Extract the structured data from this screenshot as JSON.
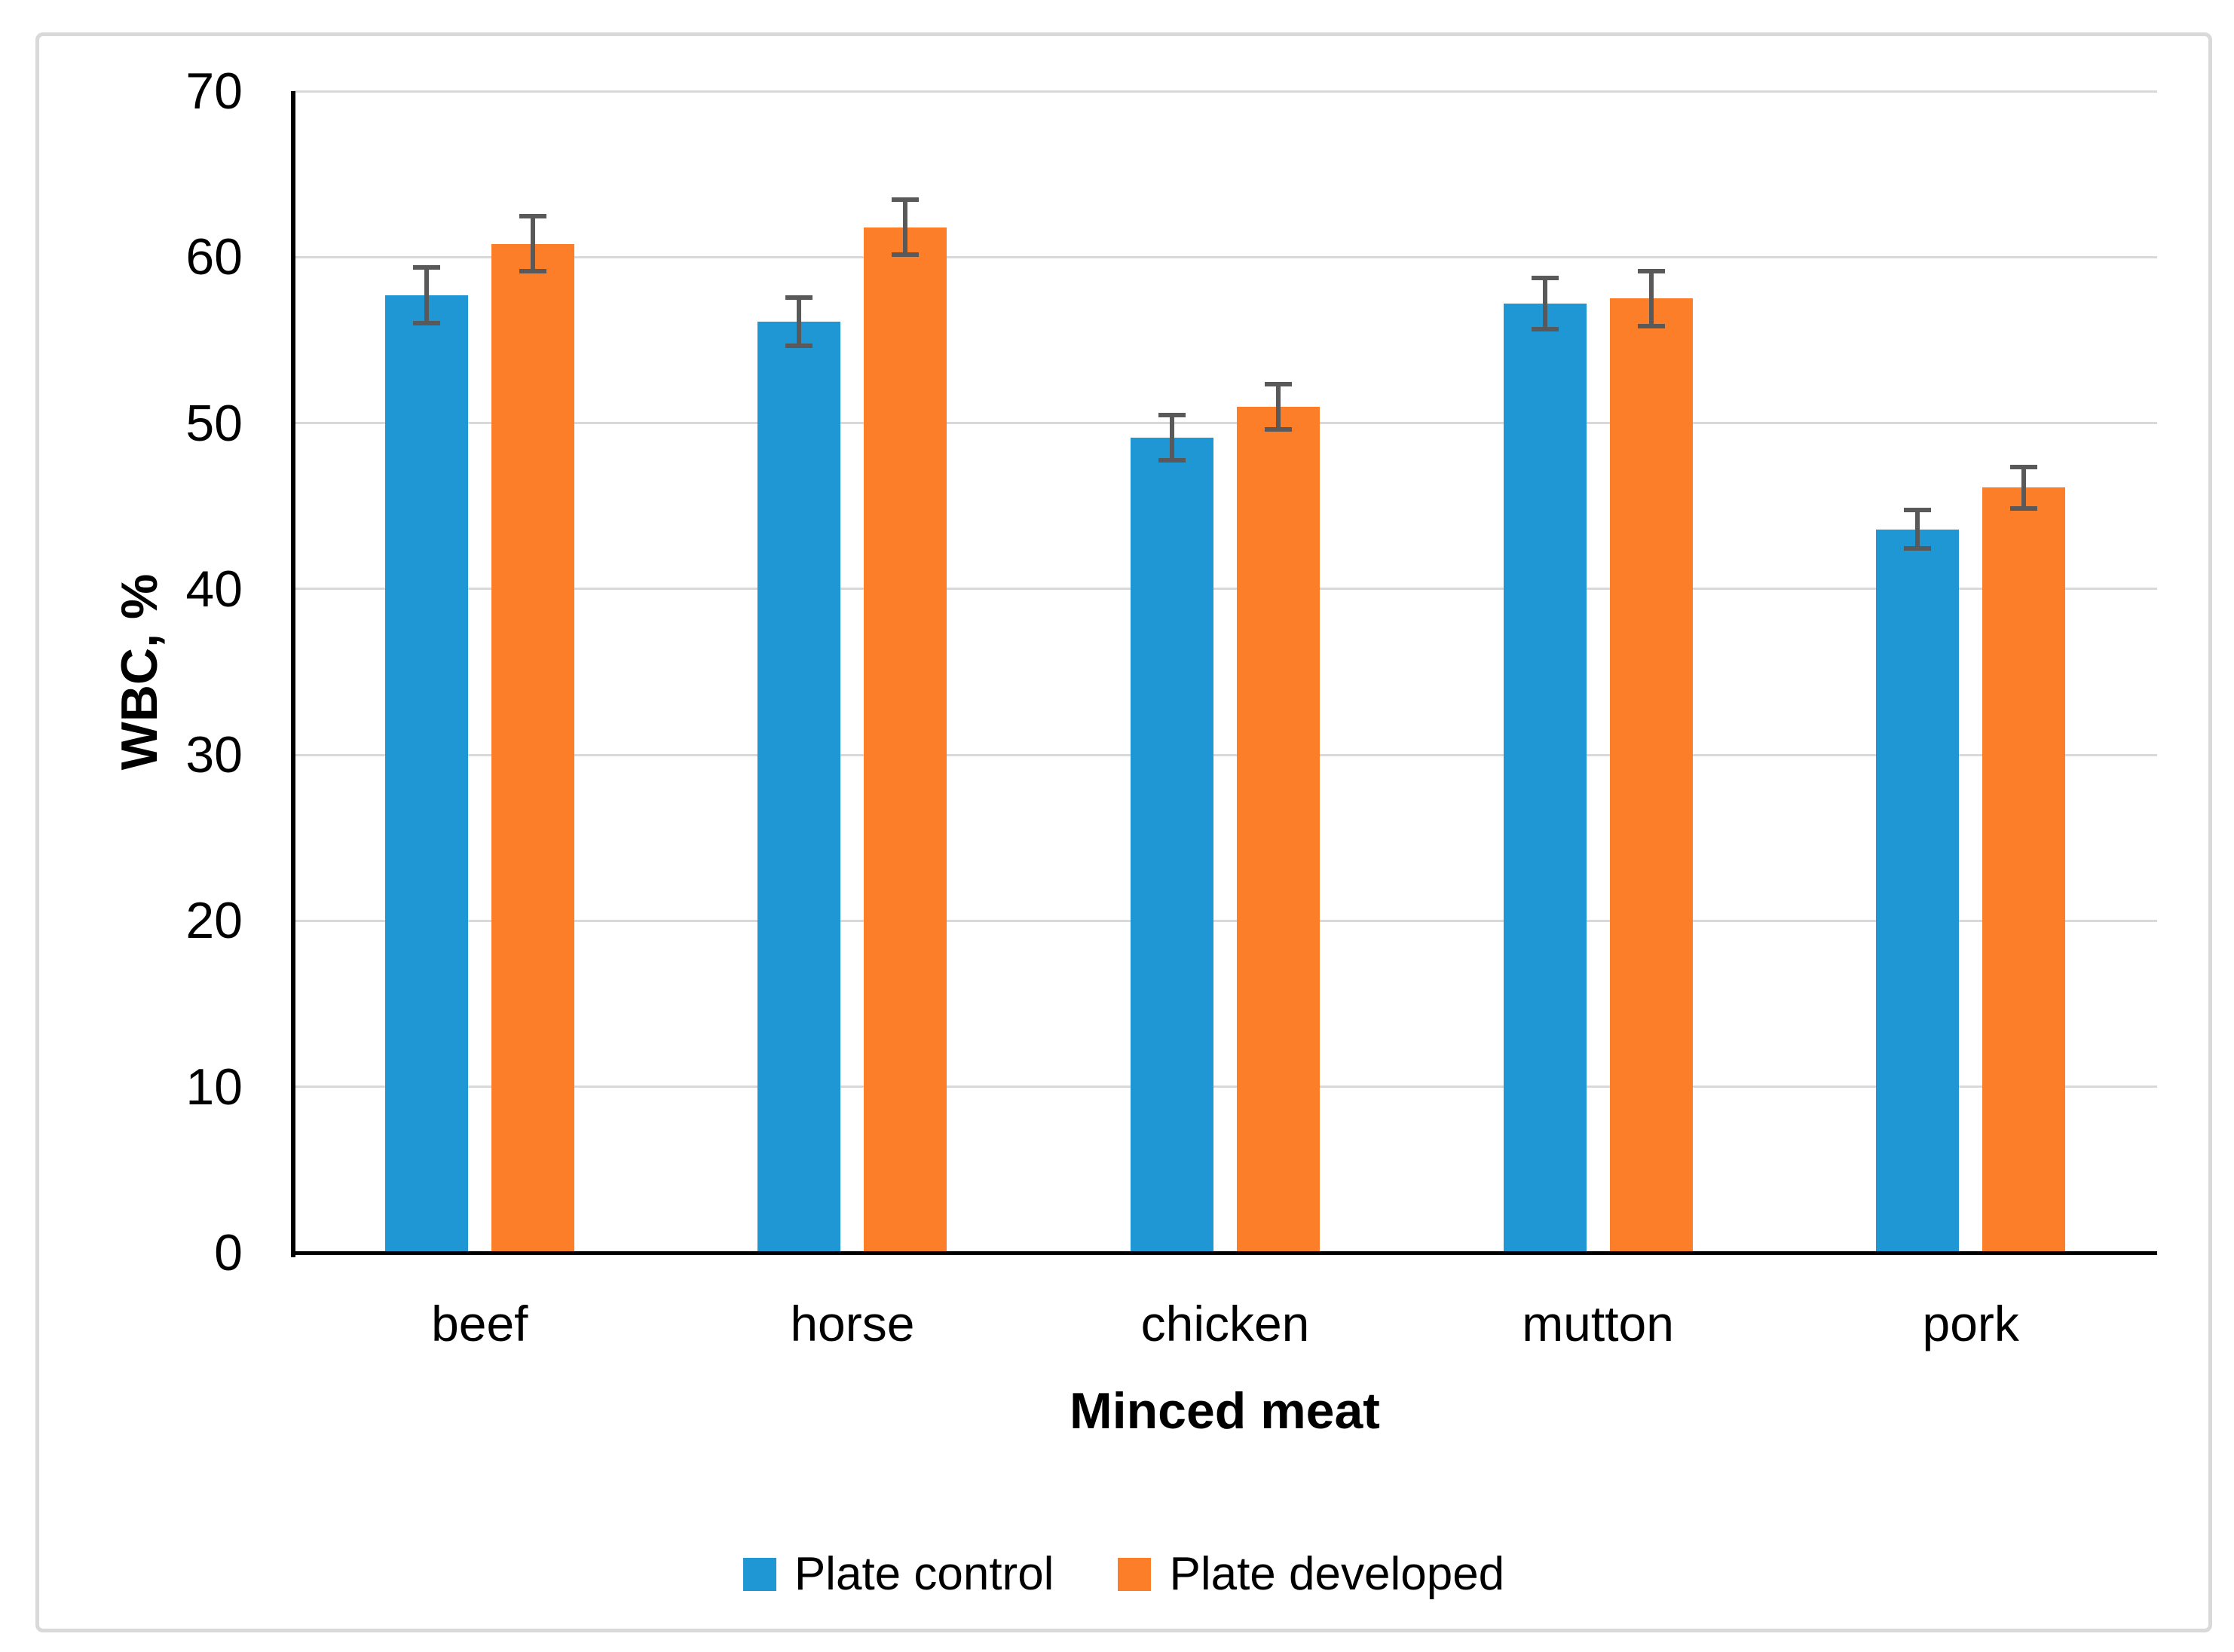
{
  "figure": {
    "background": "#FFFFFF",
    "frame_border_color": "#D9D9D9"
  },
  "chart_data": {
    "type": "bar",
    "title": "",
    "categories": [
      "beef",
      "horse",
      "chicken",
      "mutton",
      "pork"
    ],
    "series": [
      {
        "name": "Plate control",
        "color": "#1E97D4",
        "values": [
          57.7,
          56.1,
          49.1,
          57.2,
          43.6
        ],
        "errors": [
          1.8,
          1.6,
          1.5,
          1.7,
          1.3
        ]
      },
      {
        "name": "Plate developed",
        "color": "#FC7E28",
        "values": [
          60.8,
          61.8,
          51.0,
          57.5,
          46.1
        ],
        "errors": [
          1.8,
          1.8,
          1.5,
          1.8,
          1.4
        ]
      }
    ],
    "xlabel": "Minced meat",
    "ylabel": "WBC, %",
    "ylim": [
      0,
      70
    ],
    "yticks": [
      0,
      10,
      20,
      30,
      40,
      50,
      60,
      70
    ],
    "grid": "horizontal",
    "gridline_color": "#D9D9D9",
    "axis_color": "#000000",
    "error_bar_color": "#595959",
    "legend_position": "bottom-center"
  }
}
